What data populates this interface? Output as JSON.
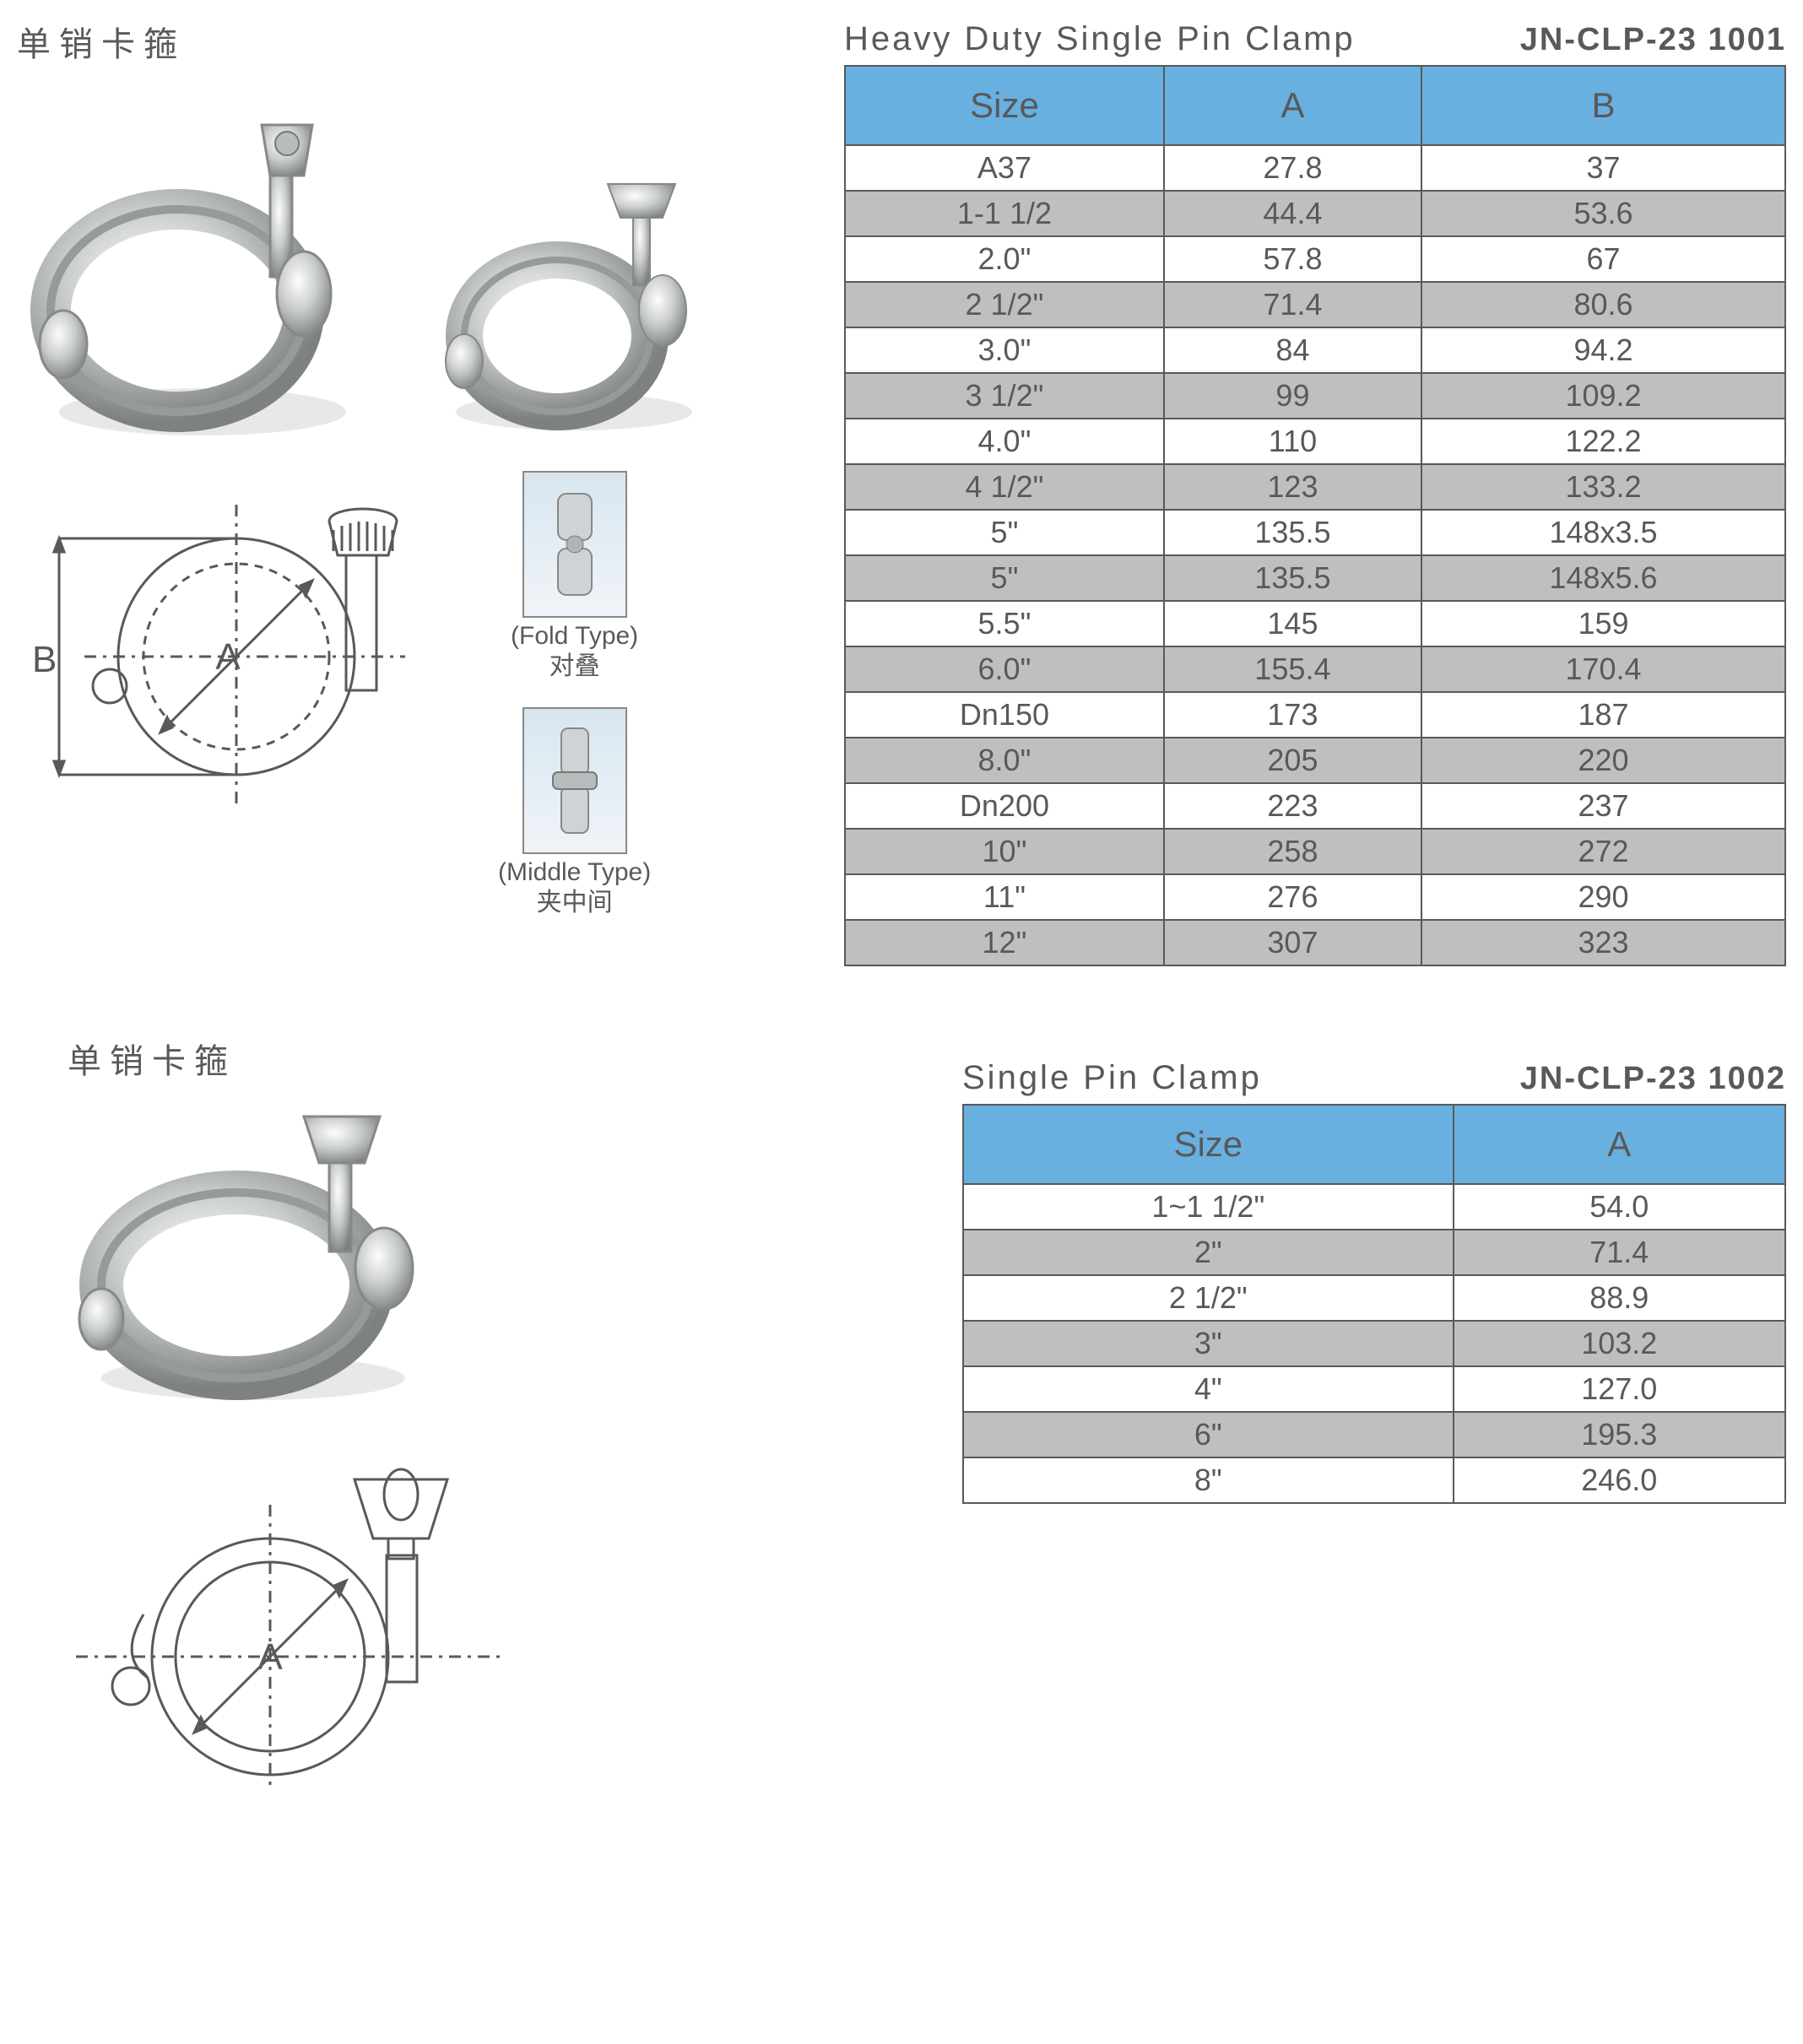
{
  "colors": {
    "header_bg": "#68b0e0",
    "row_alt_bg": "#bfbfbf",
    "row_bg": "#ffffff",
    "border": "#595959",
    "text": "#595959"
  },
  "section1": {
    "cn_title": "单销卡箍",
    "en_title": "Heavy Duty Single Pin Clamp",
    "code": "JN-CLP-23 1001",
    "diagram_labels": {
      "A": "A",
      "B": "B"
    },
    "type_labels": {
      "fold_en": "(Fold Type)",
      "fold_cn": "对叠",
      "middle_en": "(Middle Type)",
      "middle_cn": "夹中间"
    },
    "columns": [
      "Size",
      "A",
      "B"
    ],
    "rows": [
      [
        "A37",
        "27.8",
        "37"
      ],
      [
        "1-1 1/2",
        "44.4",
        "53.6"
      ],
      [
        "2.0\"",
        "57.8",
        "67"
      ],
      [
        "2 1/2\"",
        "71.4",
        "80.6"
      ],
      [
        "3.0\"",
        "84",
        "94.2"
      ],
      [
        "3 1/2\"",
        "99",
        "109.2"
      ],
      [
        "4.0\"",
        "110",
        "122.2"
      ],
      [
        "4 1/2\"",
        "123",
        "133.2"
      ],
      [
        "5\"",
        "135.5",
        "148x3.5"
      ],
      [
        "5\"",
        "135.5",
        "148x5.6"
      ],
      [
        "5.5\"",
        "145",
        "159"
      ],
      [
        "6.0\"",
        "155.4",
        "170.4"
      ],
      [
        "Dn150",
        "173",
        "187"
      ],
      [
        "8.0\"",
        "205",
        "220"
      ],
      [
        "Dn200",
        "223",
        "237"
      ],
      [
        "10\"",
        "258",
        "272"
      ],
      [
        "11\"",
        "276",
        "290"
      ],
      [
        "12\"",
        "307",
        "323"
      ]
    ]
  },
  "section2": {
    "cn_title": "单销卡箍",
    "en_title": "Single Pin Clamp",
    "code": "JN-CLP-23 1002",
    "diagram_labels": {
      "A": "A"
    },
    "columns": [
      "Size",
      "A"
    ],
    "rows": [
      [
        "1~1 1/2\"",
        "54.0"
      ],
      [
        "2\"",
        "71.4"
      ],
      [
        "2 1/2\"",
        "88.9"
      ],
      [
        "3\"",
        "103.2"
      ],
      [
        "4\"",
        "127.0"
      ],
      [
        "6\"",
        "195.3"
      ],
      [
        "8\"",
        "246.0"
      ]
    ]
  }
}
